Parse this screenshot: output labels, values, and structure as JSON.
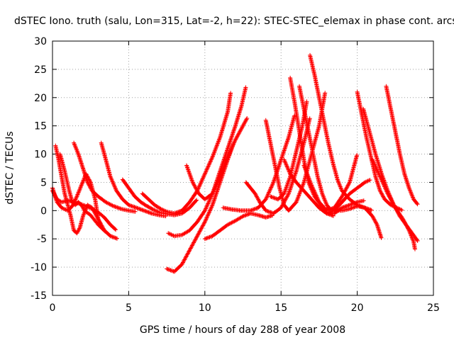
{
  "chart_data": {
    "type": "scatter",
    "title": "dSTEC Iono. truth (salu, Lon=315, Lat=-2, h=22): STEC-STEC_elemax in phase cont. arcs",
    "xlabel": "GPS time / hours of day 288 of year 2008",
    "ylabel": "dSTEC  / TECUs",
    "xlim": [
      0,
      25
    ],
    "ylim": [
      -15,
      30
    ],
    "xticks": [
      0,
      5,
      10,
      15,
      20,
      25
    ],
    "yticks": [
      -15,
      -10,
      -5,
      0,
      5,
      10,
      15,
      20,
      25,
      30
    ],
    "grid": true,
    "marker": "+",
    "color": "#ff0000",
    "series": [
      {
        "points": [
          [
            0.0,
            4.0
          ],
          [
            0.3,
            1.5
          ],
          [
            0.6,
            0.5
          ],
          [
            1.0,
            0.0
          ],
          [
            1.3,
            0.8
          ],
          [
            1.6,
            2.5
          ],
          [
            1.9,
            4.5
          ],
          [
            2.2,
            6.5
          ],
          [
            2.5,
            5.0
          ],
          [
            2.8,
            2.0
          ],
          [
            3.0,
            -1.5
          ],
          [
            3.2,
            -3.0
          ]
        ]
      },
      {
        "points": [
          [
            0.2,
            11.5
          ],
          [
            0.4,
            9.0
          ],
          [
            0.6,
            6.0
          ],
          [
            0.8,
            3.0
          ],
          [
            1.0,
            1.0
          ],
          [
            1.2,
            -1.0
          ],
          [
            1.4,
            -3.5
          ],
          [
            1.6,
            -4.0
          ],
          [
            1.8,
            -3.0
          ],
          [
            2.0,
            -1.0
          ],
          [
            2.3,
            1.0
          ],
          [
            2.6,
            0.5
          ],
          [
            3.0,
            -1.5
          ],
          [
            3.4,
            -3.5
          ],
          [
            3.8,
            -4.5
          ],
          [
            4.3,
            -5.0
          ]
        ]
      },
      {
        "points": [
          [
            0.0,
            3.5
          ],
          [
            0.3,
            2.0
          ],
          [
            0.6,
            1.5
          ],
          [
            1.0,
            1.8
          ],
          [
            1.4,
            1.5
          ],
          [
            1.8,
            1.2
          ],
          [
            2.2,
            0.8
          ],
          [
            2.6,
            0.3
          ],
          [
            3.0,
            -0.3
          ],
          [
            3.4,
            -1.2
          ],
          [
            3.8,
            -2.5
          ],
          [
            4.2,
            -3.5
          ]
        ]
      },
      {
        "points": [
          [
            0.5,
            10.0
          ],
          [
            0.8,
            7.0
          ],
          [
            1.1,
            3.5
          ],
          [
            1.3,
            1.5
          ],
          [
            1.5,
            1.0
          ],
          [
            1.7,
            1.5
          ],
          [
            1.9,
            1.0
          ],
          [
            2.1,
            0.0
          ],
          [
            2.5,
            -0.8
          ],
          [
            3.0,
            -2.5
          ],
          [
            3.5,
            -3.8
          ]
        ]
      },
      {
        "points": [
          [
            1.4,
            12.0
          ],
          [
            1.7,
            10.0
          ],
          [
            2.0,
            7.5
          ],
          [
            2.3,
            5.0
          ],
          [
            2.6,
            3.5
          ],
          [
            3.0,
            2.5
          ],
          [
            3.5,
            1.5
          ],
          [
            4.0,
            0.8
          ],
          [
            4.5,
            0.3
          ],
          [
            5.0,
            0.0
          ],
          [
            5.5,
            -0.2
          ]
        ]
      },
      {
        "points": [
          [
            3.2,
            12.0
          ],
          [
            3.5,
            9.0
          ],
          [
            3.8,
            6.0
          ],
          [
            4.2,
            3.5
          ],
          [
            4.6,
            2.0
          ],
          [
            5.0,
            1.0
          ],
          [
            5.5,
            0.5
          ],
          [
            6.0,
            0.0
          ],
          [
            6.5,
            -0.5
          ],
          [
            7.0,
            -0.8
          ],
          [
            7.5,
            -1.0
          ]
        ]
      },
      {
        "points": [
          [
            4.6,
            5.5
          ],
          [
            5.0,
            4.0
          ],
          [
            5.4,
            2.5
          ],
          [
            5.8,
            1.5
          ],
          [
            6.2,
            0.8
          ],
          [
            6.6,
            0.2
          ],
          [
            7.0,
            -0.3
          ],
          [
            7.5,
            -0.6
          ],
          [
            8.0,
            -0.8
          ],
          [
            8.5,
            -0.5
          ],
          [
            9.0,
            0.5
          ],
          [
            9.5,
            2.0
          ]
        ]
      },
      {
        "points": [
          [
            5.9,
            3.0
          ],
          [
            6.3,
            2.0
          ],
          [
            6.7,
            1.0
          ],
          [
            7.1,
            0.3
          ],
          [
            7.5,
            -0.2
          ],
          [
            8.0,
            -0.5
          ],
          [
            8.5,
            0.0
          ],
          [
            9.0,
            1.5
          ],
          [
            9.5,
            3.5
          ],
          [
            10.0,
            6.5
          ],
          [
            10.5,
            9.5
          ],
          [
            11.0,
            13.0
          ],
          [
            11.5,
            17.5
          ],
          [
            11.7,
            21.0
          ]
        ]
      },
      {
        "points": [
          [
            7.6,
            -4.0
          ],
          [
            8.0,
            -4.5
          ],
          [
            8.5,
            -4.3
          ],
          [
            9.0,
            -3.5
          ],
          [
            9.5,
            -2.0
          ],
          [
            10.0,
            0.0
          ],
          [
            10.5,
            3.0
          ],
          [
            11.0,
            7.0
          ],
          [
            11.5,
            11.0
          ],
          [
            12.0,
            15.0
          ],
          [
            12.4,
            18.5
          ],
          [
            12.7,
            22.0
          ]
        ]
      },
      {
        "points": [
          [
            7.5,
            -10.3
          ],
          [
            8.0,
            -10.8
          ],
          [
            8.5,
            -9.5
          ],
          [
            9.0,
            -7.0
          ],
          [
            9.5,
            -4.5
          ],
          [
            10.0,
            -2.0
          ],
          [
            10.5,
            1.0
          ],
          [
            11.0,
            5.0
          ],
          [
            11.5,
            9.0
          ],
          [
            11.9,
            12.0
          ]
        ]
      },
      {
        "points": [
          [
            8.8,
            8.0
          ],
          [
            9.2,
            5.0
          ],
          [
            9.6,
            3.0
          ],
          [
            10.0,
            2.0
          ],
          [
            10.5,
            3.0
          ],
          [
            11.0,
            6.0
          ],
          [
            11.5,
            9.5
          ],
          [
            12.0,
            12.5
          ],
          [
            12.5,
            15.0
          ],
          [
            12.8,
            16.5
          ]
        ]
      },
      {
        "points": [
          [
            10.0,
            -5.0
          ],
          [
            10.5,
            -4.5
          ],
          [
            11.0,
            -3.5
          ],
          [
            11.5,
            -2.5
          ],
          [
            12.0,
            -1.8
          ],
          [
            12.5,
            -1.0
          ],
          [
            13.0,
            -0.5
          ],
          [
            13.5,
            -0.8
          ],
          [
            14.0,
            -1.2
          ],
          [
            14.5,
            -0.8
          ]
        ]
      },
      {
        "points": [
          [
            11.2,
            0.5
          ],
          [
            11.8,
            0.2
          ],
          [
            12.4,
            0.0
          ],
          [
            13.0,
            0.0
          ],
          [
            13.5,
            0.5
          ],
          [
            14.0,
            2.0
          ],
          [
            14.5,
            5.0
          ],
          [
            15.0,
            9.0
          ],
          [
            15.5,
            13.0
          ],
          [
            15.9,
            17.0
          ]
        ]
      },
      {
        "points": [
          [
            12.7,
            5.0
          ],
          [
            13.0,
            4.0
          ],
          [
            13.3,
            3.0
          ],
          [
            13.6,
            1.5
          ],
          [
            14.0,
            0.0
          ],
          [
            14.5,
            -0.5
          ],
          [
            15.0,
            0.5
          ],
          [
            15.5,
            3.0
          ],
          [
            16.0,
            7.0
          ],
          [
            16.5,
            12.0
          ],
          [
            16.9,
            16.5
          ]
        ]
      },
      {
        "points": [
          [
            14.0,
            16.0
          ],
          [
            14.3,
            12.0
          ],
          [
            14.6,
            8.0
          ],
          [
            14.9,
            4.0
          ],
          [
            15.2,
            1.0
          ],
          [
            15.5,
            0.0
          ],
          [
            16.0,
            1.5
          ],
          [
            16.5,
            5.0
          ],
          [
            17.0,
            10.0
          ],
          [
            17.5,
            15.0
          ],
          [
            17.9,
            21.0
          ]
        ]
      },
      {
        "points": [
          [
            14.3,
            2.5
          ],
          [
            14.8,
            2.0
          ],
          [
            15.2,
            3.0
          ],
          [
            15.6,
            6.0
          ],
          [
            16.0,
            10.5
          ],
          [
            16.4,
            15.0
          ],
          [
            16.7,
            19.5
          ]
        ]
      },
      {
        "points": [
          [
            15.6,
            23.5
          ],
          [
            15.9,
            19.0
          ],
          [
            16.2,
            14.0
          ],
          [
            16.5,
            9.0
          ],
          [
            16.8,
            5.0
          ],
          [
            17.2,
            2.5
          ],
          [
            17.6,
            1.0
          ],
          [
            18.0,
            -0.5
          ],
          [
            18.5,
            -1.0
          ]
        ]
      },
      {
        "points": [
          [
            16.2,
            22.0
          ],
          [
            16.5,
            18.0
          ],
          [
            16.8,
            14.0
          ],
          [
            17.1,
            10.0
          ],
          [
            17.4,
            6.0
          ],
          [
            17.7,
            3.0
          ],
          [
            18.0,
            1.0
          ],
          [
            18.3,
            0.0
          ]
        ]
      },
      {
        "points": [
          [
            15.2,
            9.0
          ],
          [
            15.6,
            6.5
          ],
          [
            16.0,
            5.0
          ],
          [
            16.5,
            3.5
          ],
          [
            17.0,
            2.0
          ],
          [
            17.5,
            0.5
          ],
          [
            18.0,
            -0.5
          ],
          [
            18.5,
            -0.5
          ],
          [
            19.0,
            0.5
          ],
          [
            19.5,
            1.0
          ],
          [
            20.0,
            1.5
          ],
          [
            20.5,
            1.8
          ]
        ]
      },
      {
        "points": [
          [
            16.9,
            27.5
          ],
          [
            17.2,
            24.0
          ],
          [
            17.5,
            20.0
          ],
          [
            17.8,
            16.0
          ],
          [
            18.1,
            12.0
          ],
          [
            18.4,
            8.5
          ],
          [
            18.7,
            5.5
          ],
          [
            19.0,
            3.5
          ],
          [
            19.5,
            2.0
          ],
          [
            20.0,
            1.0
          ],
          [
            20.5,
            0.5
          ],
          [
            21.0,
            0.0
          ]
        ]
      },
      {
        "points": [
          [
            16.5,
            8.0
          ],
          [
            17.0,
            4.5
          ],
          [
            17.5,
            1.5
          ],
          [
            18.0,
            0.0
          ],
          [
            18.5,
            0.5
          ],
          [
            19.0,
            2.5
          ],
          [
            19.5,
            5.0
          ],
          [
            19.8,
            8.0
          ],
          [
            20.0,
            10.0
          ]
        ]
      },
      {
        "points": [
          [
            17.5,
            0.5
          ],
          [
            18.0,
            -0.5
          ],
          [
            18.5,
            0.0
          ],
          [
            19.0,
            1.5
          ],
          [
            19.5,
            3.0
          ],
          [
            20.0,
            4.0
          ],
          [
            20.5,
            5.0
          ],
          [
            20.9,
            5.5
          ]
        ]
      },
      {
        "points": [
          [
            20.0,
            21.0
          ],
          [
            20.3,
            17.0
          ],
          [
            20.6,
            13.0
          ],
          [
            20.9,
            9.5
          ],
          [
            21.2,
            6.0
          ],
          [
            21.5,
            3.5
          ],
          [
            21.8,
            2.0
          ],
          [
            22.2,
            1.0
          ],
          [
            22.6,
            0.5
          ],
          [
            23.0,
            0.0
          ]
        ]
      },
      {
        "points": [
          [
            20.4,
            18.0
          ],
          [
            20.8,
            14.0
          ],
          [
            21.2,
            10.0
          ],
          [
            21.6,
            6.5
          ],
          [
            22.0,
            3.5
          ],
          [
            22.4,
            1.0
          ],
          [
            22.8,
            -1.0
          ],
          [
            23.2,
            -2.5
          ],
          [
            23.6,
            -4.0
          ],
          [
            24.0,
            -5.5
          ]
        ]
      },
      {
        "points": [
          [
            18.0,
            0.5
          ],
          [
            18.5,
            0.0
          ],
          [
            19.0,
            0.0
          ],
          [
            19.5,
            0.3
          ],
          [
            20.0,
            0.8
          ],
          [
            20.5,
            0.5
          ],
          [
            21.0,
            -1.0
          ],
          [
            21.3,
            -2.5
          ],
          [
            21.6,
            -5.0
          ]
        ]
      },
      {
        "points": [
          [
            21.9,
            22.0
          ],
          [
            22.2,
            18.0
          ],
          [
            22.5,
            14.0
          ],
          [
            22.8,
            10.0
          ],
          [
            23.1,
            6.5
          ],
          [
            23.4,
            4.0
          ],
          [
            23.7,
            2.0
          ],
          [
            24.0,
            1.0
          ]
        ]
      },
      {
        "points": [
          [
            21.0,
            9.0
          ],
          [
            21.5,
            6.0
          ],
          [
            22.0,
            3.0
          ],
          [
            22.5,
            0.5
          ],
          [
            23.0,
            -1.5
          ],
          [
            23.4,
            -3.5
          ],
          [
            23.7,
            -5.5
          ],
          [
            23.8,
            -7.0
          ]
        ]
      }
    ]
  }
}
